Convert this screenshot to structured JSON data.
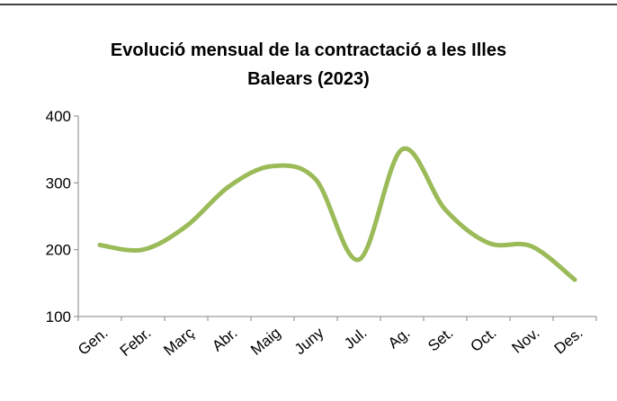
{
  "chart_data": {
    "type": "line",
    "title": "Evolució mensual de la contractació a les Illes Balears (2023)",
    "categories": [
      "Gen.",
      "Febr.",
      "Març",
      "Abr.",
      "Maig",
      "Juny",
      "Jul.",
      "Ag.",
      "Set.",
      "Oct.",
      "Nov.",
      "Des."
    ],
    "series": [
      {
        "color": "#9bbb59",
        "values": [
          207,
          200,
          235,
          295,
          325,
          305,
          185,
          350,
          260,
          210,
          205,
          155
        ]
      }
    ],
    "ylim": [
      100,
      400
    ],
    "yticks": [
      100,
      200,
      300,
      400
    ],
    "smooth": true
  }
}
